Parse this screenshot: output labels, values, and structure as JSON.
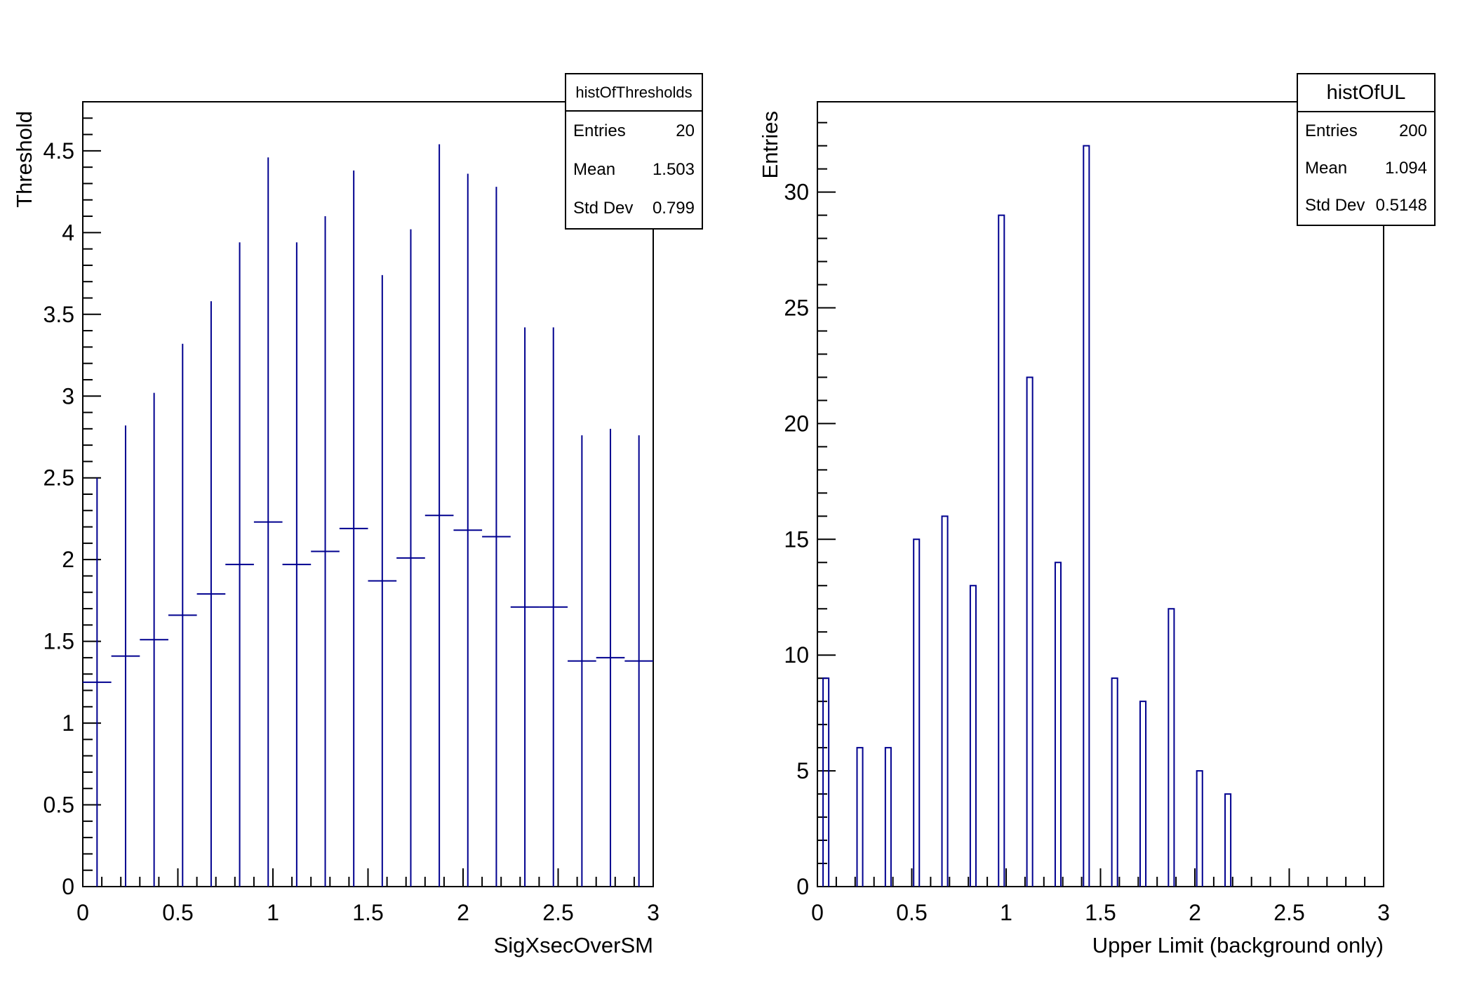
{
  "page": {
    "background_color": "#ffffff",
    "foreground_color": "#000000",
    "histogram_line_color": "#00008f"
  },
  "chart_data": [
    {
      "type": "bar",
      "subtype": "histogram-with-error-bars",
      "name": "histOfThresholds",
      "xlabel": "SigXsecOverSM",
      "ylabel": "Threshold",
      "xlim": [
        0,
        3
      ],
      "ylim": [
        0,
        4.8
      ],
      "grid": false,
      "bin_width": 0.15,
      "categories": [
        0.075,
        0.225,
        0.375,
        0.525,
        0.675,
        0.825,
        0.975,
        1.125,
        1.275,
        1.425,
        1.575,
        1.725,
        1.875,
        2.025,
        2.175,
        2.325,
        2.475,
        2.625,
        2.775,
        2.925
      ],
      "values": [
        1.25,
        1.41,
        1.51,
        1.66,
        1.79,
        1.97,
        2.23,
        1.97,
        2.05,
        2.19,
        1.87,
        2.01,
        2.27,
        2.18,
        2.14,
        1.71,
        1.71,
        1.38,
        1.4,
        1.38
      ],
      "errors": [
        1.25,
        1.41,
        1.51,
        1.66,
        1.79,
        1.97,
        2.23,
        1.97,
        2.05,
        2.19,
        1.87,
        2.01,
        2.27,
        2.18,
        2.14,
        1.71,
        1.71,
        1.38,
        1.4,
        1.38
      ],
      "x_tick_labels": [
        "0",
        "0.5",
        "1",
        "1.5",
        "2",
        "2.5",
        "3"
      ],
      "x_major_step": 0.5,
      "x_minor_step": 0.1,
      "y_tick_labels": [
        "0",
        "0.5",
        "1",
        "1.5",
        "2",
        "2.5",
        "3",
        "3.5",
        "4",
        "4.5"
      ],
      "y_major_step": 0.5,
      "y_minor_step": 0.1,
      "legend_position": "none",
      "stats": {
        "title": "histOfThresholds",
        "rows": [
          {
            "label": "Entries",
            "value": "20"
          },
          {
            "label": "Mean",
            "value": "1.503"
          },
          {
            "label": "Std Dev",
            "value": "0.799"
          }
        ]
      }
    },
    {
      "type": "bar",
      "subtype": "histogram-outline",
      "name": "histOfUL",
      "xlabel": "Upper Limit (background only)",
      "ylabel": "Entries",
      "xlim": [
        0,
        3
      ],
      "ylim": [
        0,
        33.9
      ],
      "grid": false,
      "bin_width": 0.03,
      "categories": [
        0.045,
        0.225,
        0.375,
        0.525,
        0.675,
        0.825,
        0.975,
        1.125,
        1.275,
        1.425,
        1.575,
        1.725,
        1.875,
        2.025,
        2.175
      ],
      "values": [
        9,
        6,
        6,
        15,
        16,
        13,
        29,
        22,
        14,
        32,
        9,
        8,
        12,
        5,
        4
      ],
      "x_tick_labels": [
        "0",
        "0.5",
        "1",
        "1.5",
        "2",
        "2.5",
        "3"
      ],
      "x_major_step": 0.5,
      "x_minor_step": 0.1,
      "y_tick_labels": [
        "0",
        "5",
        "10",
        "15",
        "20",
        "25",
        "30"
      ],
      "y_major_step": 5,
      "y_minor_step": 1,
      "legend_position": "none",
      "stats": {
        "title": "histOfUL",
        "rows": [
          {
            "label": "Entries",
            "value": "200"
          },
          {
            "label": "Mean",
            "value": "1.094"
          },
          {
            "label": "Std Dev",
            "value": "0.5148"
          }
        ]
      }
    }
  ]
}
